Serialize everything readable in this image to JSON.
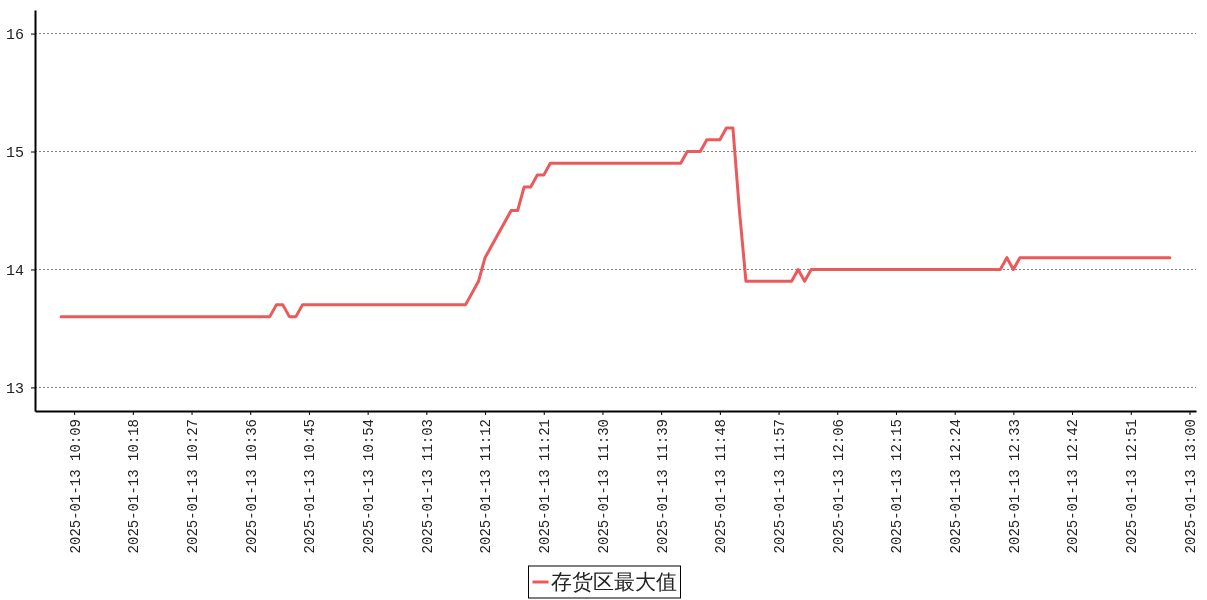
{
  "chart_data": {
    "type": "line",
    "x": [
      "2025-01-13T10:07",
      "2025-01-13T10:39",
      "2025-01-13T10:40",
      "2025-01-13T10:41",
      "2025-01-13T10:42",
      "2025-01-13T10:43",
      "2025-01-13T10:44",
      "2025-01-13T11:09",
      "2025-01-13T11:11",
      "2025-01-13T11:12",
      "2025-01-13T11:16",
      "2025-01-13T11:17",
      "2025-01-13T11:18",
      "2025-01-13T11:19",
      "2025-01-13T11:20",
      "2025-01-13T11:21",
      "2025-01-13T11:22",
      "2025-01-13T11:42",
      "2025-01-13T11:43",
      "2025-01-13T11:45",
      "2025-01-13T11:46",
      "2025-01-13T11:48",
      "2025-01-13T11:49",
      "2025-01-13T11:50",
      "2025-01-13T11:51",
      "2025-01-13T11:52",
      "2025-01-13T11:59",
      "2025-01-13T12:00",
      "2025-01-13T12:01",
      "2025-01-13T12:02",
      "2025-01-13T12:31",
      "2025-01-13T12:32",
      "2025-01-13T12:33",
      "2025-01-13T12:34",
      "2025-01-13T12:57"
    ],
    "series": [
      {
        "name": "存货区最大值",
        "color": "#eb5a5a",
        "values": [
          13.6,
          13.6,
          13.7,
          13.7,
          13.6,
          13.6,
          13.7,
          13.7,
          13.9,
          14.1,
          14.5,
          14.5,
          14.7,
          14.7,
          14.8,
          14.8,
          14.9,
          14.9,
          15.0,
          15.0,
          15.1,
          15.1,
          15.2,
          15.2,
          14.5,
          13.9,
          13.9,
          14.0,
          13.9,
          14.0,
          14.0,
          14.1,
          14.0,
          14.1,
          14.1
        ]
      }
    ],
    "xlim": [
      "2025-01-13T10:03",
      "2025-01-13T13:01"
    ],
    "xticks": [
      {
        "value": "2025-01-13T10:09",
        "label": "2025-01-13 10:09"
      },
      {
        "value": "2025-01-13T10:18",
        "label": "2025-01-13 10:18"
      },
      {
        "value": "2025-01-13T10:27",
        "label": "2025-01-13 10:27"
      },
      {
        "value": "2025-01-13T10:36",
        "label": "2025-01-13 10:36"
      },
      {
        "value": "2025-01-13T10:45",
        "label": "2025-01-13 10:45"
      },
      {
        "value": "2025-01-13T10:54",
        "label": "2025-01-13 10:54"
      },
      {
        "value": "2025-01-13T11:03",
        "label": "2025-01-13 11:03"
      },
      {
        "value": "2025-01-13T11:12",
        "label": "2025-01-13 11:12"
      },
      {
        "value": "2025-01-13T11:21",
        "label": "2025-01-13 11:21"
      },
      {
        "value": "2025-01-13T11:30",
        "label": "2025-01-13 11:30"
      },
      {
        "value": "2025-01-13T11:39",
        "label": "2025-01-13 11:39"
      },
      {
        "value": "2025-01-13T11:48",
        "label": "2025-01-13 11:48"
      },
      {
        "value": "2025-01-13T11:57",
        "label": "2025-01-13 11:57"
      },
      {
        "value": "2025-01-13T12:06",
        "label": "2025-01-13 12:06"
      },
      {
        "value": "2025-01-13T12:15",
        "label": "2025-01-13 12:15"
      },
      {
        "value": "2025-01-13T12:24",
        "label": "2025-01-13 12:24"
      },
      {
        "value": "2025-01-13T12:33",
        "label": "2025-01-13 12:33"
      },
      {
        "value": "2025-01-13T12:42",
        "label": "2025-01-13 12:42"
      },
      {
        "value": "2025-01-13T12:51",
        "label": "2025-01-13 12:51"
      },
      {
        "value": "2025-01-13T13:00",
        "label": "2025-01-13 13:00"
      }
    ],
    "ylim": [
      12.8,
      16.2
    ],
    "yticks": [
      13,
      14,
      15,
      16
    ],
    "grid": "y",
    "legend": "bottom"
  }
}
